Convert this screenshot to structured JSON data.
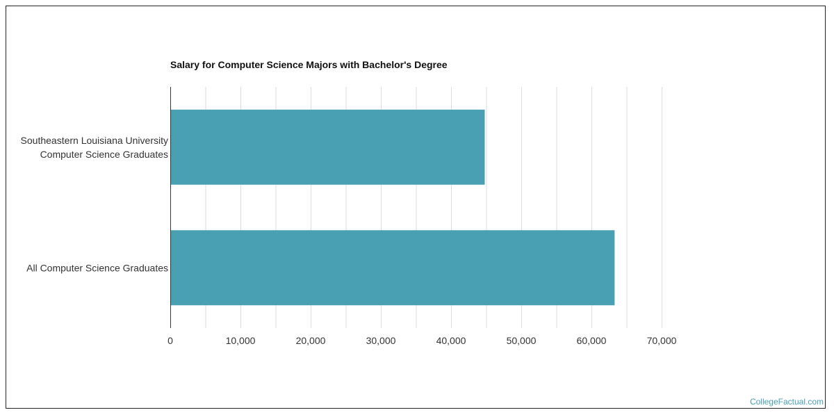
{
  "watermark": "CollegeFactual.com",
  "colors": {
    "bar": "#4aa0b3",
    "grid": "#dddddd",
    "axis": "#333333"
  },
  "chart_data": {
    "type": "bar",
    "orientation": "horizontal",
    "title": "Salary for Computer Science Majors with Bachelor's Degree",
    "categories": [
      [
        "Southeastern Louisiana University",
        "Computer Science Graduates"
      ],
      [
        "All Computer Science Graduates"
      ]
    ],
    "values": [
      44800,
      63300
    ],
    "xlim": [
      0,
      70000
    ],
    "xticks": [
      "0",
      "10,000",
      "20,000",
      "30,000",
      "40,000",
      "50,000",
      "60,000",
      "70,000"
    ],
    "xtick_values": [
      0,
      10000,
      20000,
      30000,
      40000,
      50000,
      60000,
      70000
    ],
    "grid": true,
    "legend": "none"
  }
}
